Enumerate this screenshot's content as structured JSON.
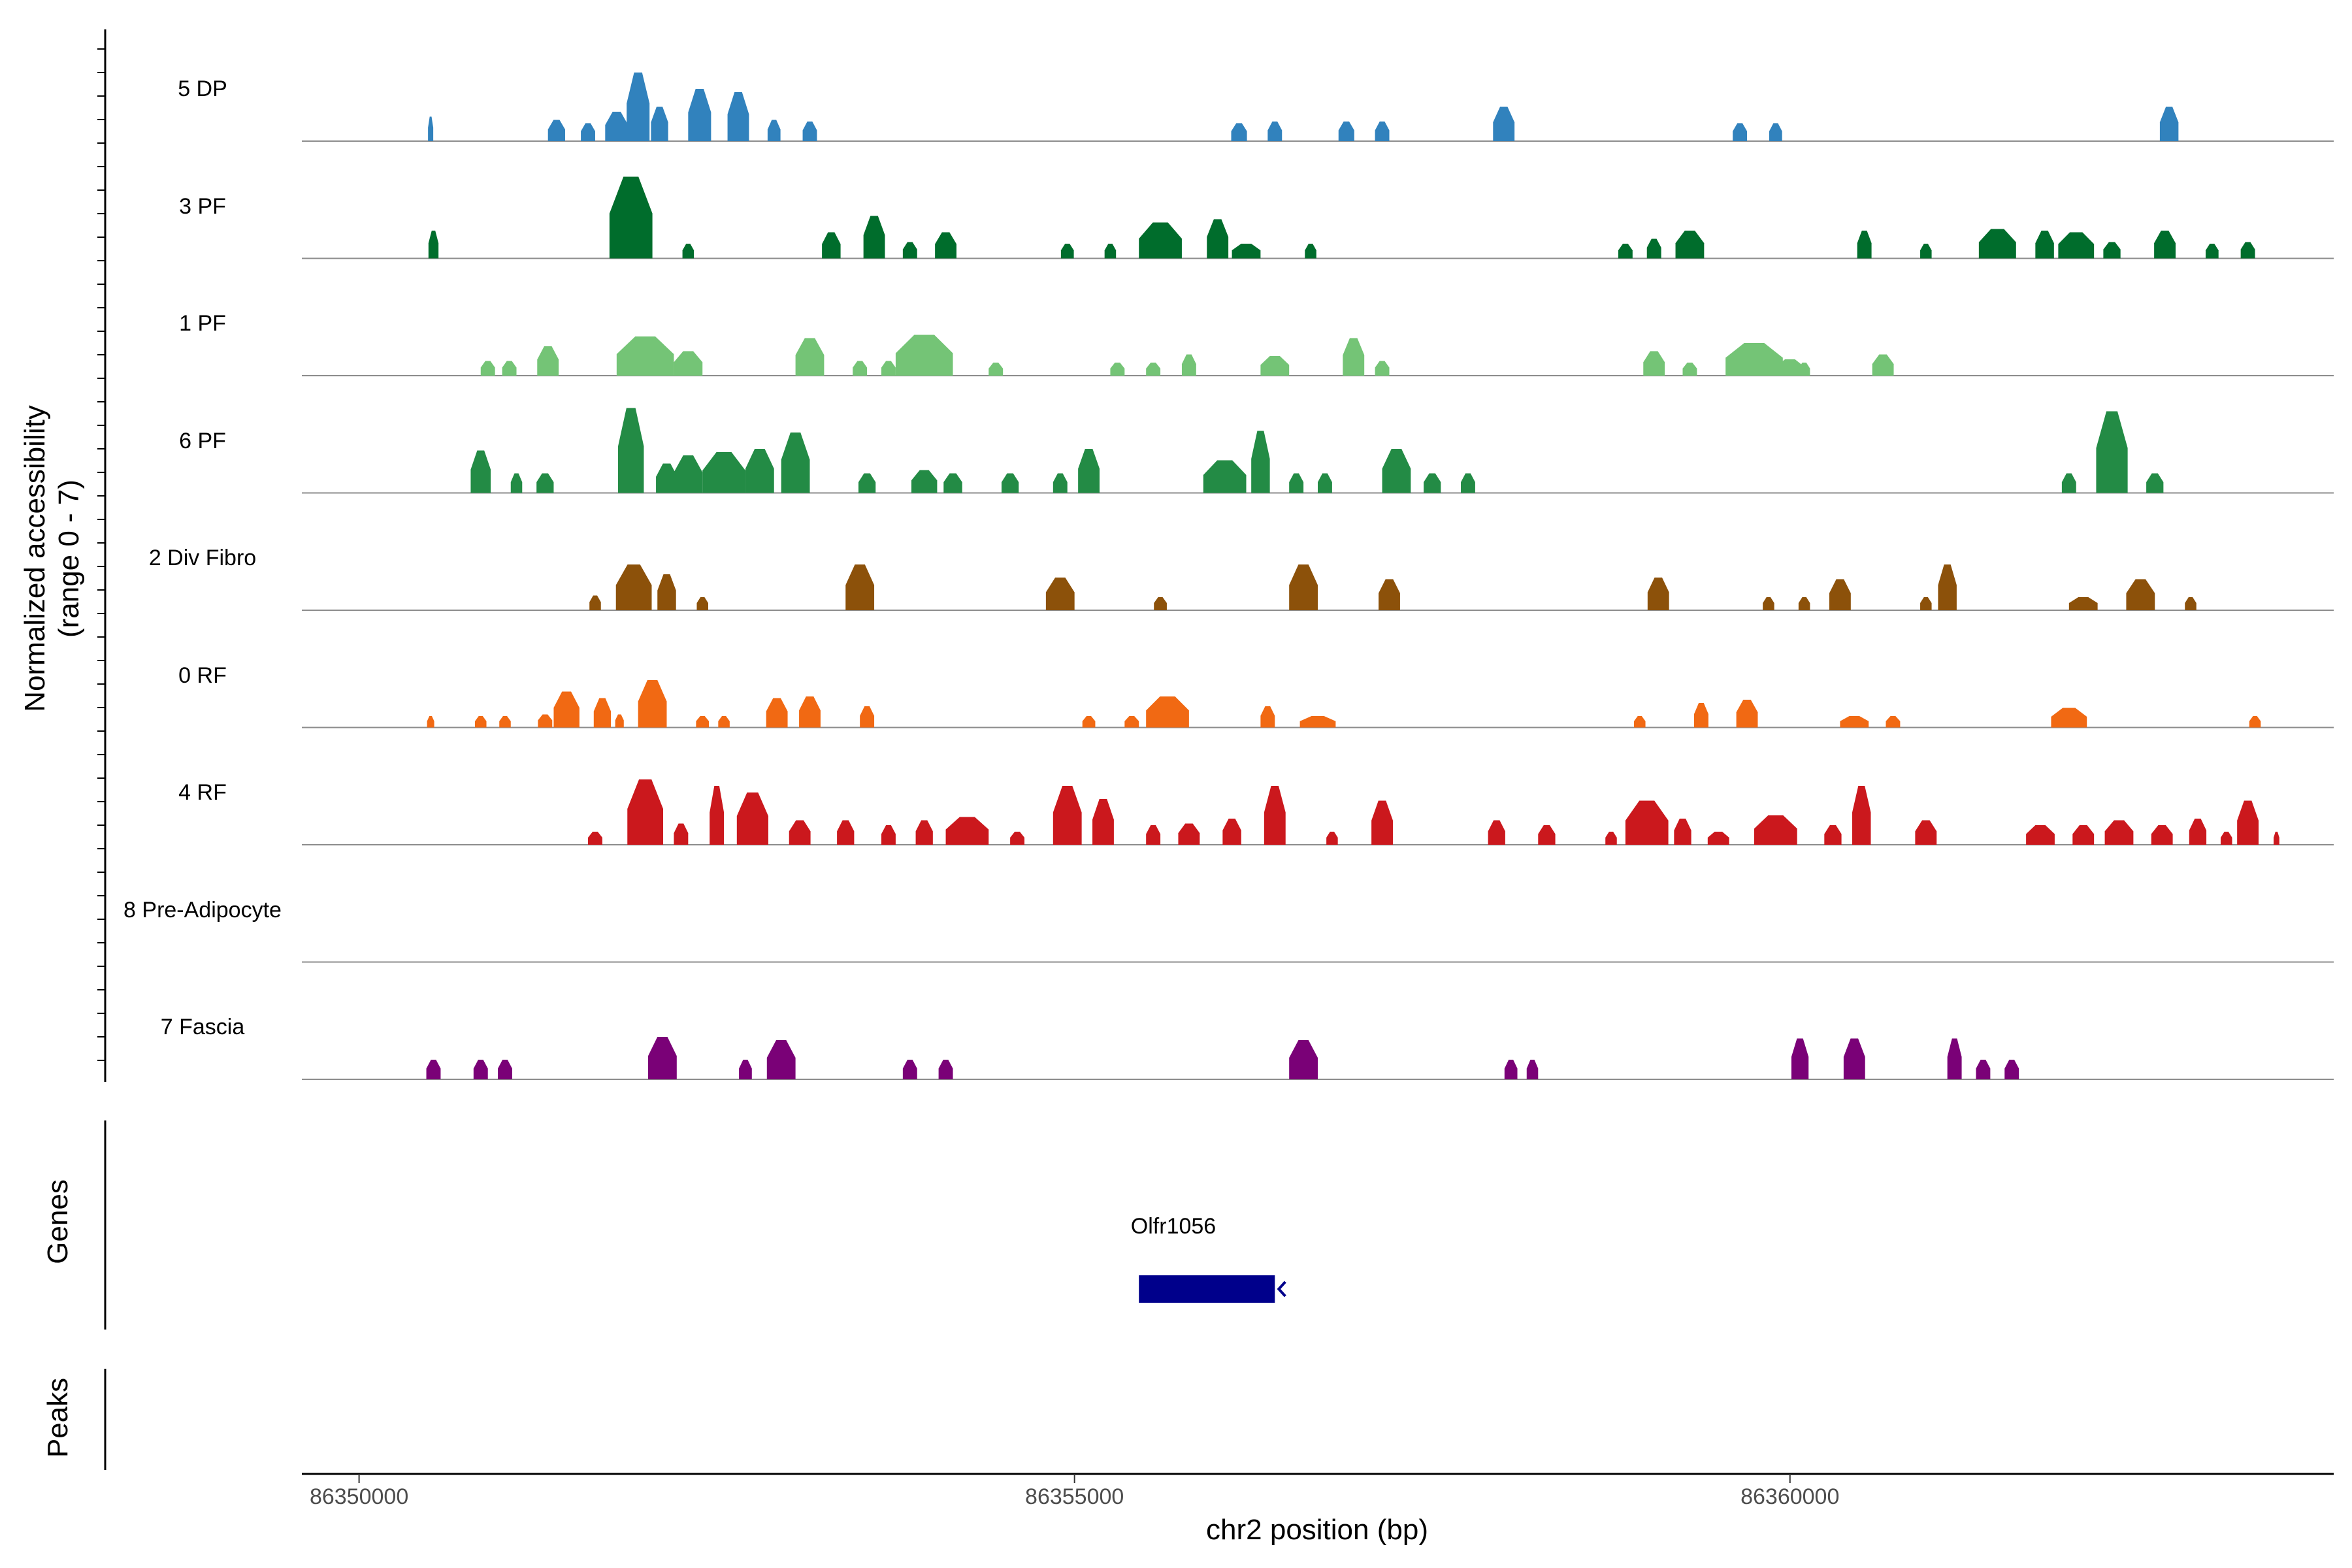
{
  "chart_data": {
    "type": "area",
    "title": "",
    "xlabel": "chr2 position (bp)",
    "ylabel_line1": "Normalized accessibility",
    "ylabel_line2": "(range 0 - 7)",
    "ylim": [
      0,
      7
    ],
    "xlim": [
      86349600,
      86363800
    ],
    "x_ticks": [
      86350000,
      86355000,
      86360000
    ],
    "x_tick_labels": [
      "86350000",
      "86355000",
      "86360000"
    ],
    "panel_labels": {
      "genes": "Genes",
      "peaks": "Peaks"
    },
    "gene": {
      "name": "Olfr1056",
      "start": 86355450,
      "end": 86356400,
      "strand": "-",
      "color": "#00008B"
    },
    "series": [
      {
        "name": "5 DP",
        "color": "#3182BD",
        "peaks": [
          [
            86350500,
            1.5,
            15
          ],
          [
            86351380,
            1.3,
            120
          ],
          [
            86351600,
            1.1,
            100
          ],
          [
            86351800,
            1.8,
            160
          ],
          [
            86351950,
            4.2,
            160
          ],
          [
            86352100,
            2.1,
            120
          ],
          [
            86352380,
            3.2,
            160
          ],
          [
            86352650,
            3.0,
            150
          ],
          [
            86352900,
            1.3,
            90
          ],
          [
            86353150,
            1.2,
            100
          ],
          [
            86356150,
            1.1,
            110
          ],
          [
            86356400,
            1.2,
            100
          ],
          [
            86356900,
            1.2,
            110
          ],
          [
            86357150,
            1.2,
            100
          ],
          [
            86358000,
            2.1,
            150
          ],
          [
            86359650,
            1.1,
            100
          ],
          [
            86359900,
            1.1,
            90
          ],
          [
            86362650,
            2.1,
            130
          ]
        ]
      },
      {
        "name": "3 PF",
        "color": "#006D2C",
        "peaks": [
          [
            86350520,
            1.7,
            70
          ],
          [
            86351900,
            5.0,
            300
          ],
          [
            86352300,
            0.9,
            80
          ],
          [
            86353300,
            1.6,
            130
          ],
          [
            86353600,
            2.6,
            150
          ],
          [
            86353850,
            1.0,
            100
          ],
          [
            86354100,
            1.6,
            150
          ],
          [
            86354950,
            0.9,
            90
          ],
          [
            86355250,
            0.9,
            80
          ],
          [
            86355600,
            2.2,
            300
          ],
          [
            86356000,
            2.4,
            150
          ],
          [
            86356200,
            0.9,
            200
          ],
          [
            86356650,
            0.9,
            80
          ],
          [
            86358850,
            0.9,
            100
          ],
          [
            86359050,
            1.2,
            100
          ],
          [
            86359300,
            1.7,
            200
          ],
          [
            86360520,
            1.7,
            100
          ],
          [
            86360950,
            0.9,
            80
          ],
          [
            86361450,
            1.8,
            260
          ],
          [
            86361780,
            1.7,
            130
          ],
          [
            86362000,
            1.6,
            250
          ],
          [
            86362250,
            1.0,
            120
          ],
          [
            86362620,
            1.7,
            150
          ],
          [
            86362950,
            0.9,
            90
          ],
          [
            86363200,
            1.0,
            100
          ]
        ]
      },
      {
        "name": "1 PF",
        "color": "#74C476",
        "peaks": [
          [
            86350900,
            0.9,
            100
          ],
          [
            86351050,
            0.9,
            100
          ],
          [
            86351320,
            1.8,
            150
          ],
          [
            86352000,
            2.4,
            400
          ],
          [
            86352300,
            1.5,
            200
          ],
          [
            86353150,
            2.3,
            200
          ],
          [
            86353500,
            0.9,
            100
          ],
          [
            86353700,
            0.9,
            100
          ],
          [
            86353950,
            2.5,
            400
          ],
          [
            86354450,
            0.8,
            100
          ],
          [
            86355300,
            0.8,
            100
          ],
          [
            86355550,
            0.8,
            100
          ],
          [
            86355800,
            1.3,
            100
          ],
          [
            86356400,
            1.2,
            200
          ],
          [
            86356950,
            2.3,
            150
          ],
          [
            86357150,
            0.9,
            100
          ],
          [
            86359050,
            1.5,
            150
          ],
          [
            86359300,
            0.8,
            100
          ],
          [
            86359750,
            2.0,
            400
          ],
          [
            86360000,
            1.0,
            200
          ],
          [
            86360100,
            0.8,
            80
          ],
          [
            86360650,
            1.3,
            150
          ]
        ]
      },
      {
        "name": "6 PF",
        "color": "#238B45",
        "peaks": [
          [
            86350850,
            2.6,
            140
          ],
          [
            86351100,
            1.2,
            80
          ],
          [
            86351300,
            1.2,
            120
          ],
          [
            86351900,
            5.2,
            180
          ],
          [
            86352150,
            1.8,
            150
          ],
          [
            86352300,
            2.3,
            200
          ],
          [
            86352550,
            2.5,
            300
          ],
          [
            86352800,
            2.7,
            200
          ],
          [
            86353050,
            3.7,
            200
          ],
          [
            86353550,
            1.2,
            120
          ],
          [
            86353950,
            1.4,
            180
          ],
          [
            86354150,
            1.2,
            130
          ],
          [
            86354550,
            1.2,
            120
          ],
          [
            86354900,
            1.2,
            100
          ],
          [
            86355100,
            2.7,
            150
          ],
          [
            86356050,
            2.0,
            300
          ],
          [
            86356300,
            3.8,
            130
          ],
          [
            86356550,
            1.2,
            100
          ],
          [
            86356750,
            1.2,
            100
          ],
          [
            86357250,
            2.7,
            200
          ],
          [
            86357500,
            1.2,
            120
          ],
          [
            86357750,
            1.2,
            100
          ],
          [
            86361950,
            1.2,
            100
          ],
          [
            86362250,
            5.0,
            220
          ],
          [
            86362550,
            1.2,
            120
          ]
        ]
      },
      {
        "name": "2 Div Fibro",
        "color": "#8C510A",
        "peaks": [
          [
            86351650,
            0.9,
            80
          ],
          [
            86351920,
            2.8,
            250
          ],
          [
            86352150,
            2.2,
            130
          ],
          [
            86352400,
            0.8,
            80
          ],
          [
            86353500,
            2.8,
            200
          ],
          [
            86354900,
            2.0,
            200
          ],
          [
            86355600,
            0.8,
            90
          ],
          [
            86356600,
            2.8,
            200
          ],
          [
            86357200,
            1.9,
            150
          ],
          [
            86359080,
            2.0,
            150
          ],
          [
            86359850,
            0.8,
            80
          ],
          [
            86360100,
            0.8,
            80
          ],
          [
            86360350,
            1.9,
            150
          ],
          [
            86360950,
            0.8,
            80
          ],
          [
            86361100,
            2.8,
            130
          ],
          [
            86362050,
            0.8,
            200
          ],
          [
            86362450,
            1.9,
            200
          ],
          [
            86362800,
            0.8,
            80
          ]
        ]
      },
      {
        "name": "0 RF",
        "color": "#F16913",
        "peaks": [
          [
            86350500,
            0.7,
            50
          ],
          [
            86350850,
            0.7,
            80
          ],
          [
            86351020,
            0.7,
            80
          ],
          [
            86351300,
            0.8,
            100
          ],
          [
            86351450,
            2.2,
            180
          ],
          [
            86351700,
            1.8,
            120
          ],
          [
            86351820,
            0.8,
            60
          ],
          [
            86352050,
            2.9,
            200
          ],
          [
            86352400,
            0.7,
            90
          ],
          [
            86352550,
            0.7,
            80
          ],
          [
            86352920,
            1.8,
            150
          ],
          [
            86353150,
            1.9,
            150
          ],
          [
            86353550,
            1.3,
            100
          ],
          [
            86355100,
            0.7,
            90
          ],
          [
            86355400,
            0.7,
            100
          ],
          [
            86355650,
            1.9,
            300
          ],
          [
            86356350,
            1.3,
            100
          ],
          [
            86356700,
            0.7,
            250
          ],
          [
            86358950,
            0.7,
            80
          ],
          [
            86359380,
            1.5,
            100
          ],
          [
            86359700,
            1.7,
            150
          ],
          [
            86360450,
            0.7,
            200
          ],
          [
            86360720,
            0.7,
            100
          ],
          [
            86361950,
            1.2,
            250
          ],
          [
            86363250,
            0.7,
            80
          ]
        ]
      },
      {
        "name": "4 RF",
        "color": "#CB181D",
        "peaks": [
          [
            86351650,
            0.8,
            100
          ],
          [
            86352000,
            4.0,
            250
          ],
          [
            86352250,
            1.3,
            100
          ],
          [
            86352500,
            3.6,
            100
          ],
          [
            86352750,
            3.2,
            220
          ],
          [
            86353080,
            1.5,
            150
          ],
          [
            86353400,
            1.5,
            120
          ],
          [
            86353700,
            1.2,
            100
          ],
          [
            86353950,
            1.5,
            120
          ],
          [
            86354250,
            1.7,
            300
          ],
          [
            86354600,
            0.8,
            100
          ],
          [
            86354950,
            3.6,
            200
          ],
          [
            86355200,
            2.8,
            150
          ],
          [
            86355550,
            1.2,
            100
          ],
          [
            86355800,
            1.3,
            150
          ],
          [
            86356100,
            1.6,
            130
          ],
          [
            86356400,
            3.6,
            150
          ],
          [
            86356800,
            0.8,
            80
          ],
          [
            86357150,
            2.7,
            150
          ],
          [
            86357950,
            1.5,
            120
          ],
          [
            86358300,
            1.2,
            120
          ],
          [
            86358750,
            0.8,
            80
          ],
          [
            86359000,
            2.7,
            300
          ],
          [
            86359250,
            1.6,
            120
          ],
          [
            86359500,
            0.8,
            150
          ],
          [
            86359900,
            1.8,
            300
          ],
          [
            86360300,
            1.2,
            120
          ],
          [
            86360500,
            3.6,
            130
          ],
          [
            86360950,
            1.5,
            150
          ],
          [
            86361750,
            1.2,
            200
          ],
          [
            86362050,
            1.2,
            150
          ],
          [
            86362300,
            1.5,
            200
          ],
          [
            86362600,
            1.2,
            150
          ],
          [
            86362850,
            1.6,
            120
          ],
          [
            86363050,
            0.8,
            80
          ],
          [
            86363200,
            2.7,
            150
          ],
          [
            86363400,
            0.8,
            40
          ]
        ]
      },
      {
        "name": "8 Pre-Adipocyte",
        "color": "#D94801",
        "peaks": []
      },
      {
        "name": "7 Fascia",
        "color": "#7A0177",
        "peaks": [
          [
            86350520,
            1.2,
            100
          ],
          [
            86350850,
            1.2,
            100
          ],
          [
            86351020,
            1.2,
            100
          ],
          [
            86352120,
            2.6,
            200
          ],
          [
            86352700,
            1.2,
            90
          ],
          [
            86352950,
            2.4,
            200
          ],
          [
            86353850,
            1.2,
            100
          ],
          [
            86354100,
            1.2,
            100
          ],
          [
            86356600,
            2.4,
            200
          ],
          [
            86358050,
            1.2,
            90
          ],
          [
            86358200,
            1.2,
            80
          ],
          [
            86360070,
            2.5,
            120
          ],
          [
            86360450,
            2.5,
            150
          ],
          [
            86361150,
            2.5,
            100
          ],
          [
            86361350,
            1.2,
            100
          ],
          [
            86361550,
            1.2,
            100
          ]
        ]
      }
    ]
  }
}
